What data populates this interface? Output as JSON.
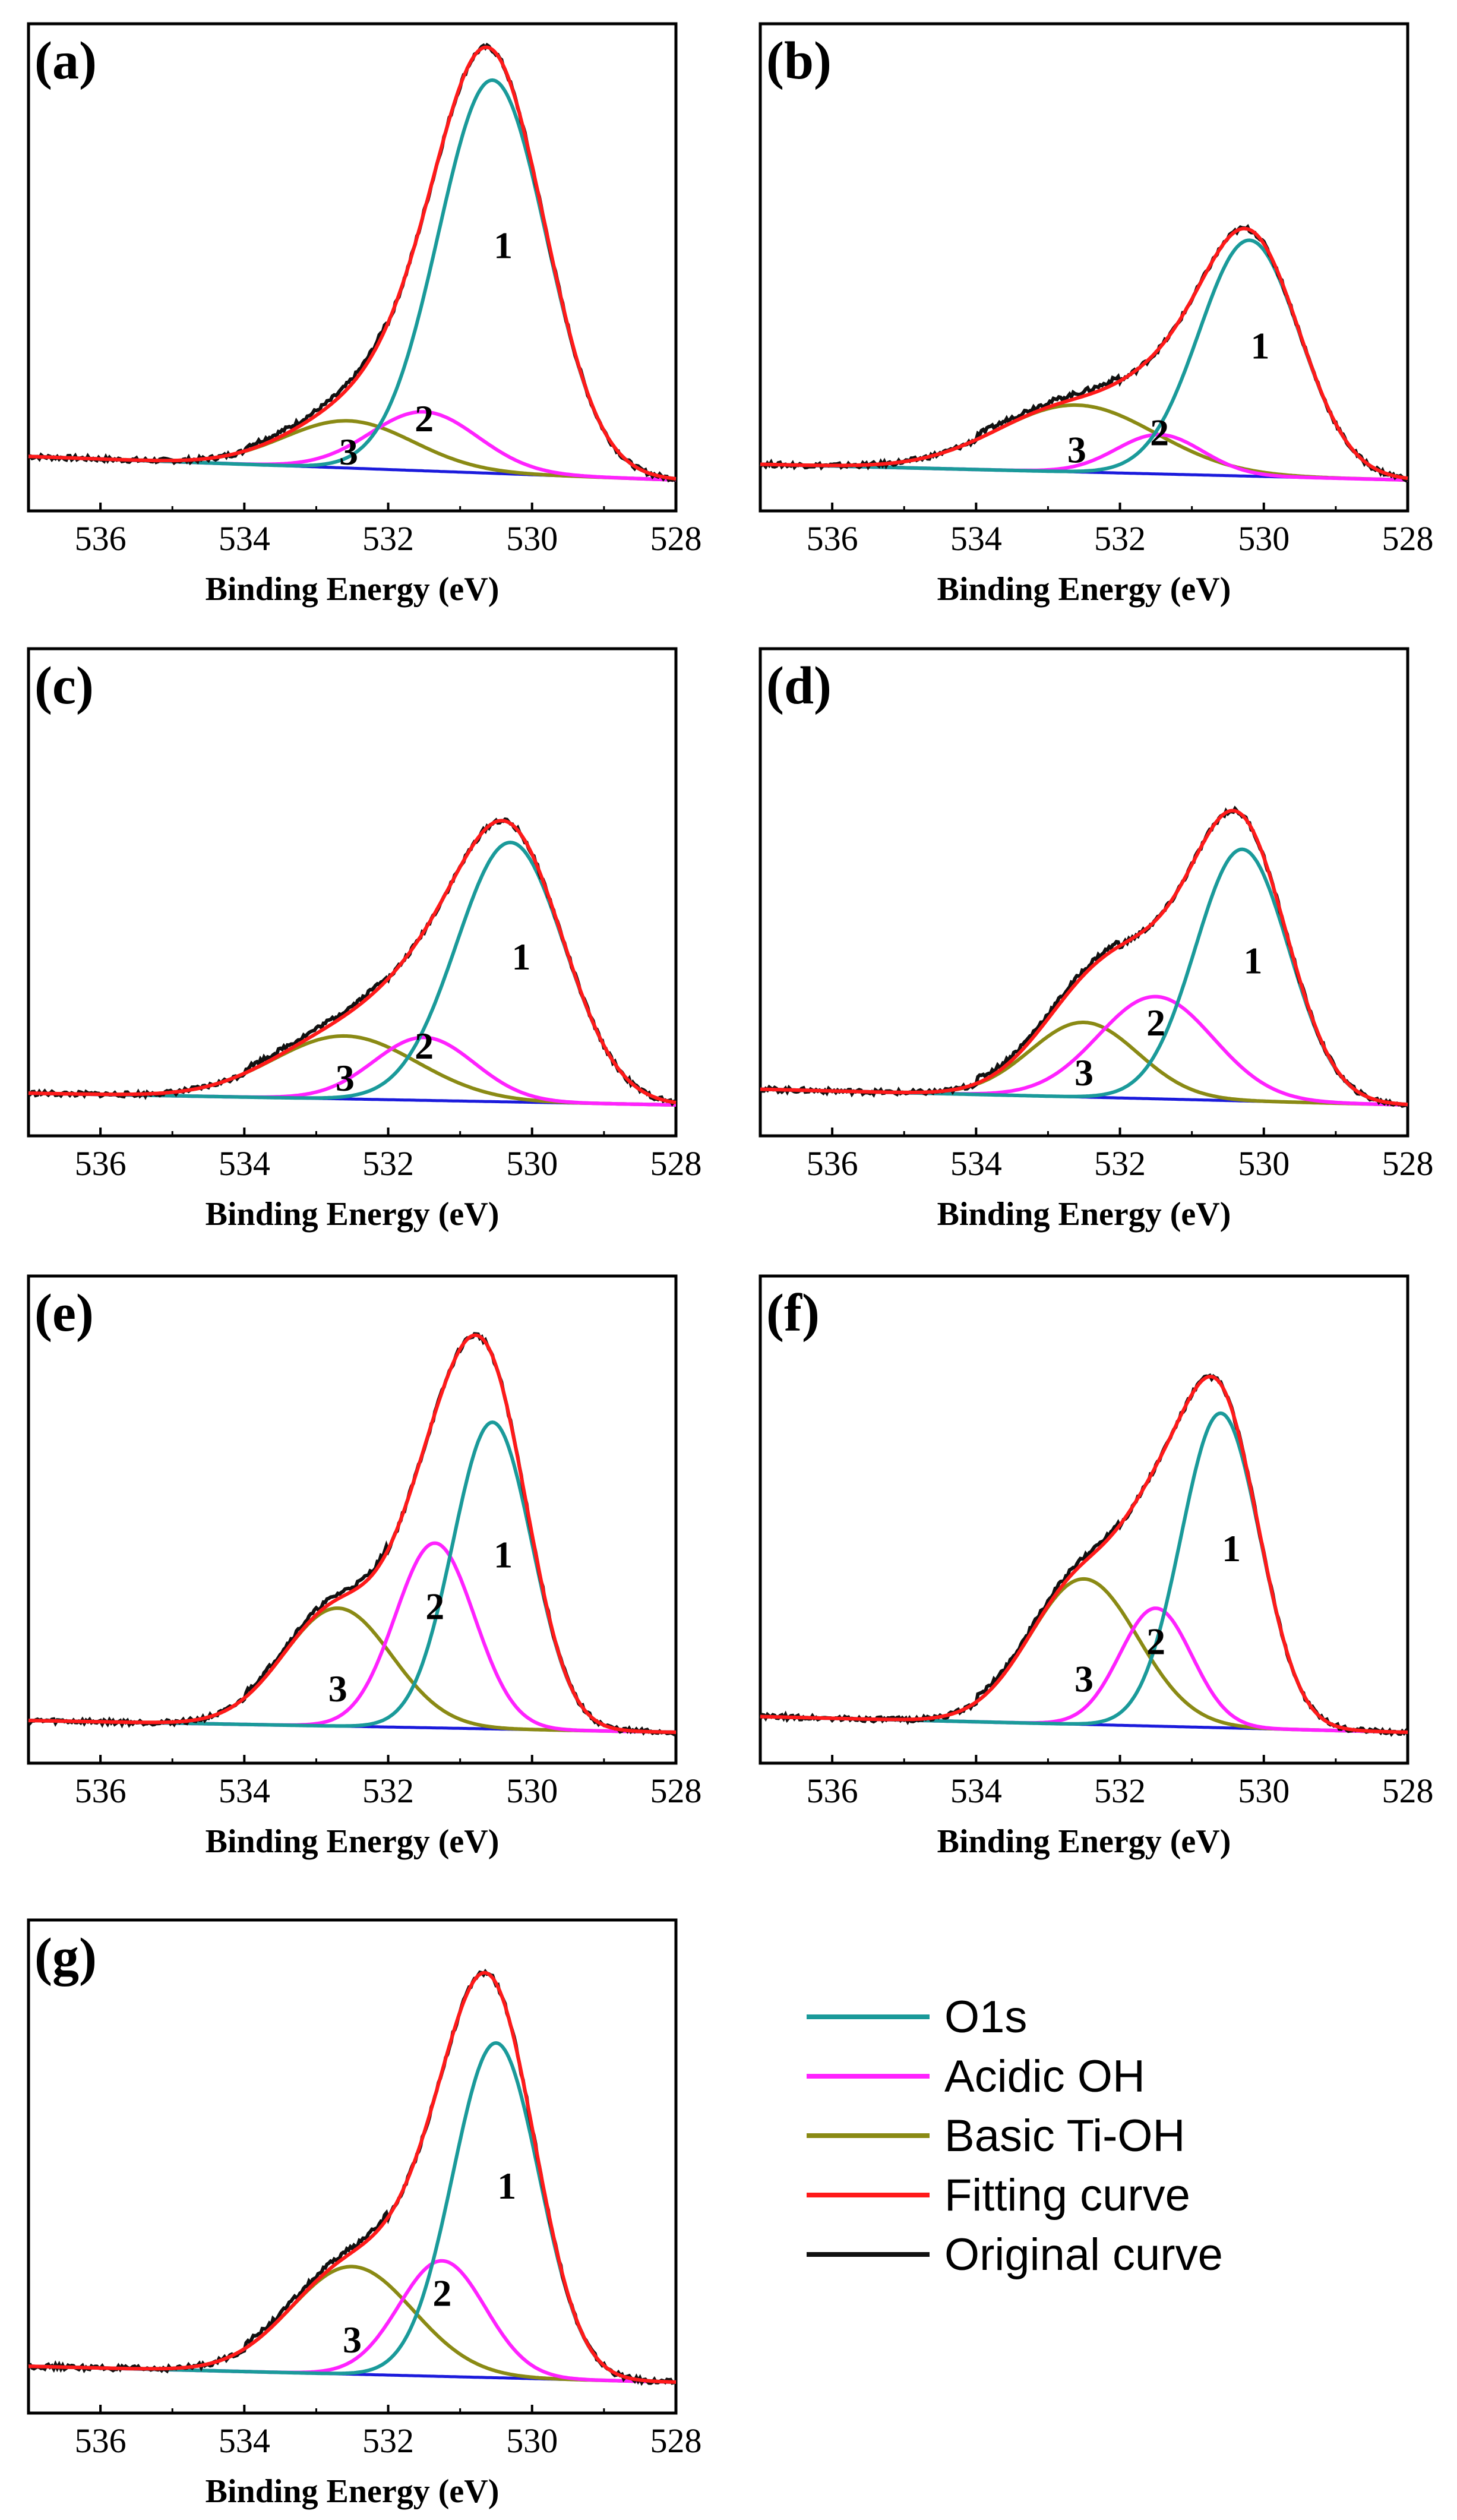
{
  "colors": {
    "o1s": "#1a9a9a",
    "acidic": "#ff22ff",
    "basic": "#8a8a14",
    "fit": "#ff1a1a",
    "original": "#111111",
    "baseline": "#1a1adc"
  },
  "legend": [
    {
      "label": "O1s",
      "color_key": "o1s"
    },
    {
      "label": "Acidic OH",
      "color_key": "acidic"
    },
    {
      "label": "Basic Ti-OH",
      "color_key": "basic"
    },
    {
      "label": "Fitting curve",
      "color_key": "fit"
    },
    {
      "label": "Original curve",
      "color_key": "original"
    }
  ],
  "chart_data": [
    {
      "type": "line",
      "panel": "(a)",
      "xlabel": "Binding Energy (eV)",
      "xlim": [
        537,
        528
      ],
      "xticks": [
        536,
        534,
        532,
        530,
        528
      ],
      "ylim": [
        0,
        1.1
      ],
      "baseline": [
        0.06,
        0.0
      ],
      "peaks": [
        {
          "name": "O1s",
          "label": "1",
          "center": 530.55,
          "height": 1.0,
          "width": 0.75,
          "color_key": "o1s"
        },
        {
          "name": "Acidic OH",
          "label": "2",
          "center": 531.5,
          "height": 0.15,
          "width": 0.75,
          "color_key": "acidic"
        },
        {
          "name": "Basic Ti-OH",
          "label": "3",
          "center": 532.55,
          "height": 0.12,
          "width": 0.9,
          "color_key": "basic"
        }
      ]
    },
    {
      "type": "line",
      "panel": "(b)",
      "xlabel": "Binding Energy (eV)",
      "xlim": [
        537,
        528
      ],
      "xticks": [
        536,
        534,
        532,
        530,
        528
      ],
      "ylim": [
        0,
        1.1
      ],
      "baseline": [
        0.04,
        0.0
      ],
      "peaks": [
        {
          "name": "O1s",
          "label": "1",
          "center": 530.2,
          "height": 0.6,
          "width": 0.7,
          "color_key": "o1s"
        },
        {
          "name": "Acidic OH",
          "label": "2",
          "center": 531.45,
          "height": 0.1,
          "width": 0.6,
          "color_key": "acidic"
        },
        {
          "name": "Basic Ti-OH",
          "label": "3",
          "center": 532.6,
          "height": 0.17,
          "width": 1.1,
          "color_key": "basic"
        }
      ]
    },
    {
      "type": "line",
      "panel": "(c)",
      "xlabel": "Binding Energy (eV)",
      "xlim": [
        537,
        528
      ],
      "xticks": [
        536,
        534,
        532,
        530,
        528
      ],
      "ylim": [
        0,
        1.1
      ],
      "baseline": [
        0.03,
        0.0
      ],
      "peaks": [
        {
          "name": "O1s",
          "label": "1",
          "center": 530.3,
          "height": 0.66,
          "width": 0.75,
          "color_key": "o1s"
        },
        {
          "name": "Acidic OH",
          "label": "2",
          "center": 531.5,
          "height": 0.16,
          "width": 0.7,
          "color_key": "acidic"
        },
        {
          "name": "Basic Ti-OH",
          "label": "3",
          "center": 532.6,
          "height": 0.16,
          "width": 1.0,
          "color_key": "basic"
        }
      ]
    },
    {
      "type": "line",
      "panel": "(d)",
      "xlabel": "Binding Energy (eV)",
      "xlim": [
        537,
        528
      ],
      "xticks": [
        536,
        534,
        532,
        530,
        528
      ],
      "ylim": [
        0,
        1.1
      ],
      "baseline": [
        0.04,
        0.0
      ],
      "peaks": [
        {
          "name": "O1s",
          "label": "1",
          "center": 530.3,
          "height": 0.64,
          "width": 0.65,
          "color_key": "o1s"
        },
        {
          "name": "Acidic OH",
          "label": "2",
          "center": 531.5,
          "height": 0.26,
          "width": 0.8,
          "color_key": "acidic"
        },
        {
          "name": "Basic Ti-OH",
          "label": "3",
          "center": 532.5,
          "height": 0.19,
          "width": 0.75,
          "color_key": "basic"
        }
      ]
    },
    {
      "type": "line",
      "panel": "(e)",
      "xlabel": "Binding Energy (eV)",
      "xlim": [
        537,
        528
      ],
      "xticks": [
        536,
        534,
        532,
        530,
        528
      ],
      "ylim": [
        0,
        1.1
      ],
      "baseline": [
        0.03,
        0.0
      ],
      "peaks": [
        {
          "name": "O1s",
          "label": "1",
          "center": 530.55,
          "height": 0.78,
          "width": 0.55,
          "color_key": "o1s"
        },
        {
          "name": "Acidic OH",
          "label": "2",
          "center": 531.35,
          "height": 0.47,
          "width": 0.55,
          "color_key": "acidic"
        },
        {
          "name": "Basic Ti-OH",
          "label": "3",
          "center": 532.7,
          "height": 0.3,
          "width": 0.75,
          "color_key": "basic"
        }
      ]
    },
    {
      "type": "line",
      "panel": "(f)",
      "xlabel": "Binding Energy (eV)",
      "xlim": [
        537,
        528
      ],
      "xticks": [
        536,
        534,
        532,
        530,
        528
      ],
      "ylim": [
        0,
        1.1
      ],
      "baseline": [
        0.04,
        0.0
      ],
      "peaks": [
        {
          "name": "O1s",
          "label": "1",
          "center": 530.6,
          "height": 0.8,
          "width": 0.55,
          "color_key": "o1s"
        },
        {
          "name": "Acidic OH",
          "label": "2",
          "center": 531.5,
          "height": 0.3,
          "width": 0.5,
          "color_key": "acidic"
        },
        {
          "name": "Basic Ti-OH",
          "label": "3",
          "center": 532.5,
          "height": 0.37,
          "width": 0.75,
          "color_key": "basic"
        }
      ]
    },
    {
      "type": "line",
      "panel": "(g)",
      "xlabel": "Binding Energy (eV)",
      "xlim": [
        537,
        528
      ],
      "xticks": [
        536,
        534,
        532,
        530,
        528
      ],
      "ylim": [
        0,
        1.1
      ],
      "baseline": [
        0.04,
        0.0
      ],
      "peaks": [
        {
          "name": "O1s",
          "label": "1",
          "center": 530.5,
          "height": 0.84,
          "width": 0.6,
          "color_key": "o1s"
        },
        {
          "name": "Acidic OH",
          "label": "2",
          "center": 531.25,
          "height": 0.29,
          "width": 0.6,
          "color_key": "acidic"
        },
        {
          "name": "Basic Ti-OH",
          "label": "3",
          "center": 532.5,
          "height": 0.27,
          "width": 0.85,
          "color_key": "basic"
        }
      ]
    }
  ]
}
